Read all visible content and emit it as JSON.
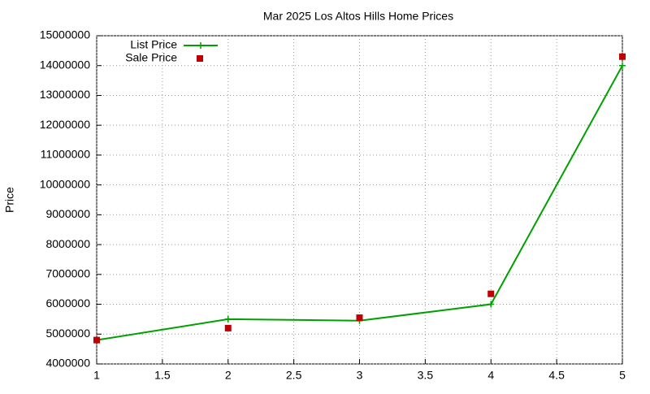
{
  "chart_data": {
    "type": "line",
    "title": "Mar 2025 Los Altos Hills Home Prices",
    "y_label": "Price",
    "x": [
      1,
      2,
      3,
      4,
      5
    ],
    "series": [
      {
        "name": "List Price",
        "color": "#00a000",
        "style": "line-points",
        "values": [
          4800000,
          5500000,
          5450000,
          6000000,
          14000000
        ]
      },
      {
        "name": "Sale Price",
        "color": "#c00000",
        "style": "points",
        "values": [
          4800000,
          5200000,
          5550000,
          6350000,
          14300000
        ]
      }
    ],
    "xlim": [
      1,
      5
    ],
    "xticks": [
      1,
      1.5,
      2,
      2.5,
      3,
      3.5,
      4,
      4.5,
      5
    ],
    "ylim": [
      4000000,
      15000000
    ],
    "yticks": [
      4000000,
      5000000,
      6000000,
      7000000,
      8000000,
      9000000,
      10000000,
      11000000,
      12000000,
      13000000,
      14000000,
      15000000
    ],
    "grid": true,
    "legend": "top-left"
  }
}
